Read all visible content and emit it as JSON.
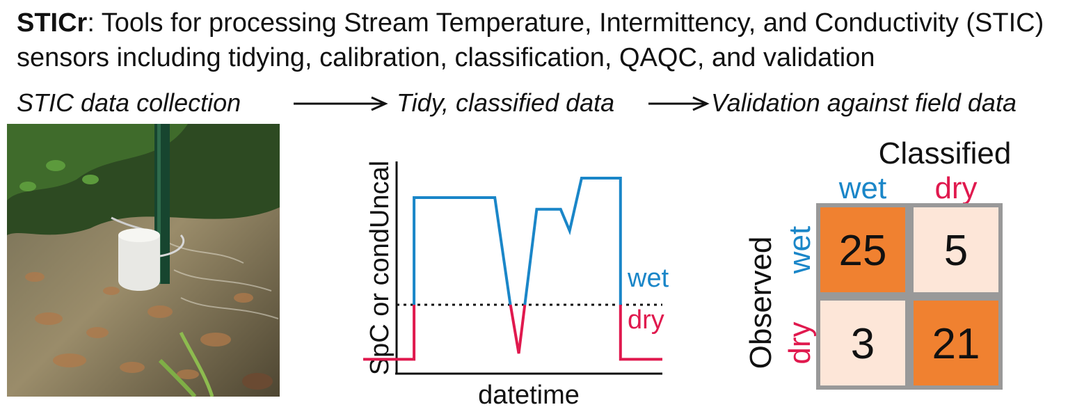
{
  "title": {
    "bold": "STICr",
    "rest": ": Tools for processing Stream Temperature, Intermittency, and Conductivity (STIC) sensors including tidying, calibration, classification, QAQC, and validation"
  },
  "workflow": {
    "step1": "STIC data collection",
    "step2": "Tidy, classified data",
    "step3": "Validation against field data"
  },
  "colors": {
    "wet": "#1a86c8",
    "dry": "#e0194e",
    "matrix_high": "#f08130",
    "matrix_low": "#fde6d8",
    "matrix_border": "#999999"
  },
  "chart_data": {
    "type": "line",
    "ylabel": "SpC or condUncal",
    "xlabel": "datetime",
    "threshold": 0.3,
    "labels": {
      "wet": "wet",
      "dry": "dry"
    },
    "x": [
      0,
      0.17,
      0.17,
      0.44,
      0.49,
      0.52,
      0.58,
      0.66,
      0.69,
      0.73,
      0.86,
      0.86,
      1.0
    ],
    "y": [
      0.02,
      0.02,
      0.85,
      0.85,
      0.32,
      0.05,
      0.79,
      0.79,
      0.68,
      0.95,
      0.95,
      0.02,
      0.02
    ]
  },
  "confusion_matrix": {
    "title_cols": "Classified",
    "title_rows": "Observed",
    "col_labels": [
      "wet",
      "dry"
    ],
    "row_labels": [
      "wet",
      "dry"
    ],
    "values": [
      [
        "25",
        "5"
      ],
      [
        "3",
        "21"
      ]
    ]
  }
}
